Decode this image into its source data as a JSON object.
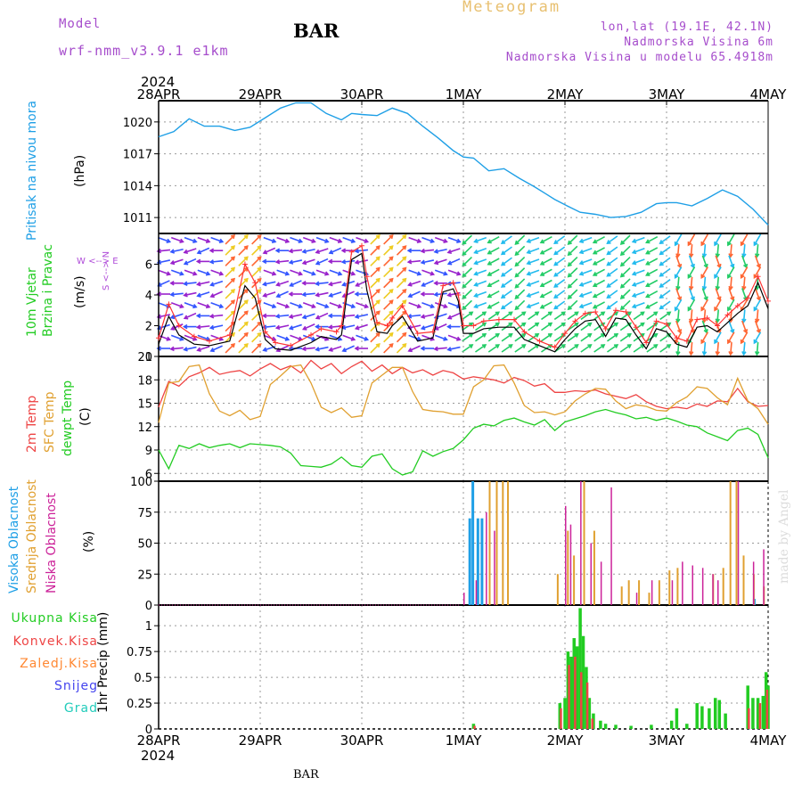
{
  "header": {
    "model_label": "Model",
    "model_name": "wrf-nmm_v3.9.1  e1km",
    "station": "BAR",
    "chart_title": "Meteogram",
    "coords": "lon,lat (19.1E, 42.1N)",
    "elevation": "Nadmorska Visina 6m",
    "model_elevation": "Nadmorska Visina u modelu 65.4918m",
    "footer_station": "BAR",
    "watermark": "made by Angel"
  },
  "time_axis": {
    "year": "2024",
    "ticks": [
      "28APR",
      "29APR",
      "30APR",
      "1MAY",
      "2MAY",
      "3MAY",
      "4MAY"
    ]
  },
  "panel_labels": {
    "pressure": {
      "title": "Pritisak na nivou mora",
      "unit": "(hPa)",
      "color": "#1e9fe6"
    },
    "wind": {
      "line1": "10m Vjetar",
      "line2": "Brzina i Pravac",
      "unit": "(m/s)",
      "compass_ns": "S <--> N",
      "compass_we": "W <--> E",
      "color": "#22cc22",
      "compass_color": "#b04dd9"
    },
    "temp": {
      "t2m": "2m Temp",
      "tsfc": "SFC Temp",
      "tdew": "dewpt Temp",
      "unit": "(C)"
    },
    "cloud": {
      "high": "Visoka Oblacnost",
      "mid": "Srednja Oblacnost",
      "low": "Niska Oblacnost",
      "unit": "(%)"
    },
    "precip": {
      "ylabel": "1hr Precip (mm)",
      "total": "Ukupna Kisa",
      "conv": "Konvek.Kisa",
      "frozen": "Zaledj.Kisa",
      "snow": "Snijeg",
      "graupel": "Grad"
    }
  },
  "colors": {
    "pressure": "#1e9fe6",
    "t2m": "#ee4444",
    "tsfc": "#e0a030",
    "tdew": "#22cc22",
    "cloud_high": "#1e9fe6",
    "cloud_mid": "#e0a030",
    "cloud_low": "#cc2299",
    "precip_total": "#22cc22",
    "precip_conv": "#ee4444",
    "precip_frozen": "#ff8833",
    "precip_snow": "#4444ee",
    "precip_graupel": "#22ccbb",
    "wind_speed": "#000000",
    "wind_gust": "#ff3333"
  },
  "chart_data": [
    {
      "type": "line",
      "ylim": [
        1009.5,
        1022
      ],
      "yticks": [
        1011,
        1014,
        1017,
        1020
      ],
      "x_days": [
        0,
        0.15,
        0.3,
        0.45,
        0.6,
        0.75,
        0.9,
        1.05,
        1.2,
        1.35,
        1.5,
        1.65,
        1.8,
        1.9,
        2.0,
        2.15,
        2.3,
        2.45,
        2.6,
        2.75,
        2.9,
        3.0,
        3.1,
        3.25,
        3.4,
        3.55,
        3.7,
        3.8,
        3.9,
        4.0,
        4.15,
        4.3,
        4.45,
        4.6,
        4.75,
        4.9,
        5.0,
        5.1,
        5.25,
        5.4,
        5.55,
        5.7,
        5.85,
        6.0
      ],
      "values": [
        1018.6,
        1019.1,
        1020.3,
        1019.6,
        1019.6,
        1019.2,
        1019.5,
        1020.4,
        1021.3,
        1021.8,
        1021.8,
        1020.8,
        1020.2,
        1020.8,
        1020.7,
        1020.6,
        1021.3,
        1020.8,
        1019.6,
        1018.5,
        1017.3,
        1016.7,
        1016.6,
        1015.4,
        1015.6,
        1014.7,
        1013.9,
        1013.3,
        1012.7,
        1012.2,
        1011.5,
        1011.3,
        1011.0,
        1011.1,
        1011.5,
        1012.3,
        1012.4,
        1012.4,
        1012.1,
        1012.8,
        1013.6,
        1013.0,
        1011.8,
        1010.3
      ]
    },
    {
      "type": "line",
      "ylim": [
        0,
        8
      ],
      "yticks": [
        0,
        2,
        4,
        6
      ],
      "series": [
        {
          "name": "speed",
          "x_days": [
            0,
            0.1,
            0.2,
            0.35,
            0.5,
            0.7,
            0.85,
            0.95,
            1.05,
            1.15,
            1.3,
            1.5,
            1.6,
            1.75,
            1.8,
            1.9,
            2.0,
            2.05,
            2.15,
            2.25,
            2.3,
            2.4,
            2.55,
            2.7,
            2.8,
            2.9,
            2.95,
            3.0,
            3.1,
            3.2,
            3.35,
            3.5,
            3.6,
            3.75,
            3.9,
            4.0,
            4.1,
            4.2,
            4.3,
            4.4,
            4.5,
            4.6,
            4.7,
            4.8,
            4.9,
            5.0,
            5.1,
            5.2,
            5.3,
            5.4,
            5.5,
            5.6,
            5.7,
            5.8,
            5.9,
            6.0
          ],
          "values": [
            0.8,
            2.6,
            1.4,
            0.8,
            0.7,
            1.0,
            4.6,
            3.8,
            1.1,
            0.5,
            0.4,
            0.9,
            1.3,
            1.1,
            1.4,
            6.3,
            6.7,
            4.3,
            1.6,
            1.5,
            2.0,
            2.6,
            1.0,
            1.2,
            4.2,
            4.4,
            3.6,
            1.5,
            1.5,
            1.8,
            1.9,
            1.9,
            1.1,
            0.7,
            0.3,
            1.1,
            1.8,
            2.3,
            2.4,
            1.3,
            2.5,
            2.4,
            1.4,
            0.5,
            1.8,
            1.6,
            0.8,
            0.6,
            1.9,
            2.0,
            1.6,
            2.2,
            2.8,
            3.3,
            4.8,
            3.1
          ]
        },
        {
          "name": "gust",
          "x_days": [
            0,
            0.1,
            0.2,
            0.35,
            0.5,
            0.7,
            0.85,
            0.95,
            1.05,
            1.15,
            1.3,
            1.5,
            1.6,
            1.75,
            1.8,
            1.9,
            2.0,
            2.05,
            2.15,
            2.25,
            2.3,
            2.4,
            2.55,
            2.7,
            2.8,
            2.9,
            2.95,
            3.0,
            3.1,
            3.2,
            3.35,
            3.5,
            3.6,
            3.75,
            3.9,
            4.0,
            4.1,
            4.2,
            4.3,
            4.4,
            4.5,
            4.6,
            4.7,
            4.8,
            4.9,
            5.0,
            5.1,
            5.2,
            5.3,
            5.4,
            5.5,
            5.6,
            5.7,
            5.8,
            5.9,
            6.0
          ],
          "values": [
            1.2,
            3.4,
            2.0,
            1.3,
            1.0,
            1.4,
            6.0,
            4.8,
            1.6,
            0.9,
            0.7,
            1.4,
            1.8,
            1.6,
            2.0,
            6.8,
            7.2,
            5.2,
            2.2,
            2.0,
            2.5,
            3.3,
            1.5,
            1.6,
            4.6,
            4.8,
            4.0,
            2.0,
            2.0,
            2.3,
            2.4,
            2.4,
            1.6,
            1.0,
            0.6,
            1.5,
            2.3,
            2.8,
            2.9,
            1.8,
            3.0,
            2.9,
            1.9,
            0.9,
            2.3,
            2.1,
            1.2,
            1.0,
            2.4,
            2.5,
            2.0,
            2.7,
            3.3,
            3.8,
            5.2,
            3.6
          ]
        }
      ]
    },
    {
      "type": "line",
      "ylim": [
        5,
        21
      ],
      "yticks": [
        6,
        9,
        12,
        15,
        18,
        21
      ],
      "x_days": [
        0,
        0.1,
        0.2,
        0.3,
        0.4,
        0.5,
        0.6,
        0.7,
        0.8,
        0.9,
        1.0,
        1.1,
        1.2,
        1.3,
        1.4,
        1.5,
        1.6,
        1.7,
        1.8,
        1.9,
        2.0,
        2.1,
        2.2,
        2.3,
        2.4,
        2.5,
        2.6,
        2.7,
        2.8,
        2.9,
        3.0,
        3.1,
        3.2,
        3.3,
        3.4,
        3.5,
        3.6,
        3.7,
        3.8,
        3.9,
        4.0,
        4.1,
        4.2,
        4.3,
        4.4,
        4.5,
        4.6,
        4.7,
        4.8,
        4.9,
        5.0,
        5.1,
        5.2,
        5.3,
        5.4,
        5.5,
        5.6,
        5.7,
        5.8,
        5.9,
        6.0
      ],
      "series": [
        {
          "name": "2m",
          "values": [
            14.5,
            17.8,
            17.2,
            18.4,
            18.9,
            19.6,
            18.7,
            19.0,
            19.2,
            18.5,
            19.4,
            20.1,
            19.3,
            19.8,
            18.9,
            20.5,
            19.4,
            20.1,
            18.8,
            19.7,
            20.4,
            19.1,
            19.9,
            18.8,
            19.6,
            18.9,
            19.3,
            18.6,
            19.2,
            18.9,
            18.1,
            18.4,
            18.2,
            18.0,
            17.6,
            18.3,
            17.9,
            17.2,
            17.5,
            16.4,
            16.4,
            16.6,
            16.5,
            16.7,
            16.2,
            15.9,
            15.6,
            16.1,
            15.2,
            14.6,
            14.3,
            14.5,
            14.3,
            14.9,
            14.6,
            15.3,
            15.2,
            16.9,
            15.2,
            14.6,
            14.7
          ]
        },
        {
          "name": "sfc",
          "values": [
            12.5,
            17.6,
            17.8,
            19.7,
            19.9,
            16.2,
            14.0,
            13.4,
            14.1,
            12.9,
            13.3,
            17.4,
            18.5,
            19.7,
            19.9,
            17.6,
            14.5,
            13.8,
            14.4,
            13.2,
            13.4,
            17.6,
            18.6,
            19.6,
            19.6,
            16.5,
            14.2,
            14.0,
            13.9,
            13.6,
            13.6,
            17.1,
            18.0,
            19.8,
            19.9,
            17.6,
            14.7,
            13.8,
            13.9,
            13.5,
            13.9,
            15.3,
            16.2,
            16.9,
            16.8,
            15.3,
            14.3,
            14.8,
            14.6,
            14.1,
            14.0,
            15.1,
            15.8,
            17.1,
            16.9,
            15.7,
            14.8,
            18.2,
            15.3,
            14.3,
            12.3
          ]
        },
        {
          "name": "dewpt",
          "values": [
            9.0,
            6.6,
            9.6,
            9.2,
            9.8,
            9.3,
            9.6,
            9.8,
            9.3,
            9.8,
            9.7,
            9.6,
            9.4,
            8.6,
            7.0,
            6.9,
            6.8,
            7.2,
            8.1,
            7.0,
            6.8,
            8.2,
            8.5,
            6.6,
            5.8,
            6.2,
            8.9,
            8.2,
            8.8,
            9.2,
            10.3,
            11.8,
            12.3,
            12.1,
            12.8,
            13.1,
            12.6,
            12.2,
            12.9,
            11.5,
            12.6,
            13.0,
            13.4,
            13.9,
            14.2,
            13.8,
            13.5,
            13.0,
            13.2,
            12.8,
            13.1,
            12.7,
            12.2,
            12.0,
            11.2,
            10.7,
            10.2,
            11.5,
            11.8,
            11.0,
            8.0
          ]
        }
      ]
    },
    {
      "type": "bar",
      "ylim": [
        0,
        100
      ],
      "yticks": [
        0,
        25,
        50,
        75,
        100
      ],
      "series": [
        {
          "name": "high",
          "bars": [
            [
              3.05,
              70
            ],
            [
              3.08,
              100
            ],
            [
              3.13,
              70
            ],
            [
              3.17,
              70
            ],
            [
              5.85,
              5
            ]
          ]
        },
        {
          "name": "mid",
          "bars": [
            [
              3.25,
              100
            ],
            [
              3.32,
              100
            ],
            [
              3.38,
              100
            ],
            [
              3.43,
              100
            ],
            [
              3.92,
              25
            ],
            [
              4.02,
              60
            ],
            [
              4.08,
              40
            ],
            [
              4.18,
              100
            ],
            [
              4.28,
              60
            ],
            [
              4.55,
              15
            ],
            [
              4.62,
              20
            ],
            [
              4.72,
              20
            ],
            [
              4.82,
              10
            ],
            [
              4.92,
              20
            ],
            [
              5.02,
              28
            ],
            [
              5.1,
              30
            ],
            [
              5.45,
              25
            ],
            [
              5.55,
              30
            ],
            [
              5.62,
              100
            ],
            [
              5.68,
              100
            ],
            [
              5.75,
              40
            ],
            [
              5.85,
              25
            ],
            [
              5.95,
              15
            ]
          ]
        },
        {
          "name": "low",
          "bars": [
            [
              3.0,
              10
            ],
            [
              3.12,
              20
            ],
            [
              3.22,
              75
            ],
            [
              3.3,
              60
            ],
            [
              4.0,
              80
            ],
            [
              4.05,
              65
            ],
            [
              4.15,
              100
            ],
            [
              4.25,
              50
            ],
            [
              4.35,
              35
            ],
            [
              4.45,
              95
            ],
            [
              4.7,
              10
            ],
            [
              4.85,
              20
            ],
            [
              5.05,
              20
            ],
            [
              5.15,
              35
            ],
            [
              5.25,
              32
            ],
            [
              5.35,
              30
            ],
            [
              5.45,
              25
            ],
            [
              5.5,
              20
            ],
            [
              5.7,
              100
            ],
            [
              5.85,
              35
            ],
            [
              5.95,
              45
            ]
          ]
        }
      ]
    },
    {
      "type": "bar",
      "ylim": [
        0,
        1.2
      ],
      "yticks": [
        0,
        0.25,
        0.5,
        0.75,
        1
      ],
      "series": [
        {
          "name": "total",
          "bars": [
            [
              3.1,
              0.05
            ],
            [
              3.95,
              0.25
            ],
            [
              4.0,
              0.3
            ],
            [
              4.03,
              0.75
            ],
            [
              4.06,
              0.7
            ],
            [
              4.09,
              0.88
            ],
            [
              4.12,
              0.8
            ],
            [
              4.15,
              1.17
            ],
            [
              4.18,
              0.9
            ],
            [
              4.21,
              0.6
            ],
            [
              4.24,
              0.3
            ],
            [
              4.28,
              0.15
            ],
            [
              4.35,
              0.08
            ],
            [
              4.4,
              0.05
            ],
            [
              4.5,
              0.04
            ],
            [
              4.65,
              0.03
            ],
            [
              4.85,
              0.04
            ],
            [
              5.05,
              0.08
            ],
            [
              5.1,
              0.2
            ],
            [
              5.2,
              0.05
            ],
            [
              5.3,
              0.25
            ],
            [
              5.35,
              0.22
            ],
            [
              5.42,
              0.2
            ],
            [
              5.48,
              0.3
            ],
            [
              5.52,
              0.28
            ],
            [
              5.58,
              0.15
            ],
            [
              5.8,
              0.42
            ],
            [
              5.85,
              0.3
            ],
            [
              5.9,
              0.3
            ],
            [
              5.95,
              0.32
            ],
            [
              5.98,
              0.55
            ],
            [
              6.0,
              0.42
            ]
          ]
        },
        {
          "name": "conv",
          "bars": [
            [
              3.11,
              0.03
            ],
            [
              3.96,
              0.2
            ],
            [
              4.04,
              0.62
            ],
            [
              4.1,
              0.7
            ],
            [
              4.16,
              0.55
            ],
            [
              4.22,
              0.45
            ],
            [
              4.27,
              0.1
            ],
            [
              5.81,
              0.2
            ],
            [
              5.92,
              0.25
            ],
            [
              5.99,
              0.38
            ]
          ]
        }
      ]
    }
  ]
}
